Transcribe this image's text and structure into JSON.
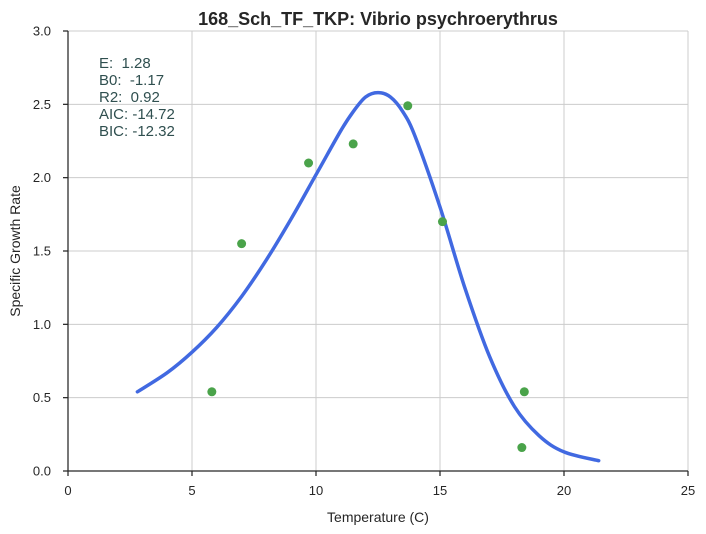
{
  "chart_data": {
    "type": "scatter",
    "title": "168_Sch_TF_TKP: Vibrio  psychroerythrus",
    "xlabel": "Temperature (C)",
    "ylabel": "Specific Growth Rate",
    "xlim": [
      0,
      25
    ],
    "ylim": [
      0,
      3
    ],
    "xticks": [
      "0",
      "5",
      "10",
      "15",
      "20",
      "25"
    ],
    "yticks": [
      "0.0",
      "0.5",
      "1.0",
      "1.5",
      "2.0",
      "2.5",
      "3.0"
    ],
    "grid": true,
    "annotations": [
      "E:  1.28",
      "B0:  -1.17",
      "R2:  0.92",
      "AIC: -14.72",
      "BIC: -12.32"
    ],
    "points": {
      "color": "#4aa34a",
      "x": [
        5.8,
        7.0,
        9.7,
        11.5,
        13.7,
        15.1,
        18.3,
        18.4
      ],
      "y": [
        0.54,
        1.55,
        2.1,
        2.23,
        2.49,
        1.7,
        0.16,
        0.54
      ]
    },
    "fit": {
      "color": "#4169e1",
      "x": [
        2.8,
        4.0,
        5.0,
        6.0,
        7.0,
        8.0,
        9.0,
        10.0,
        11.0,
        11.5,
        12.0,
        12.5,
        13.0,
        13.5,
        14.0,
        15.0,
        16.0,
        17.0,
        18.0,
        19.0,
        20.0,
        21.4
      ],
      "y": [
        0.54,
        0.67,
        0.81,
        0.98,
        1.19,
        1.44,
        1.72,
        2.02,
        2.32,
        2.45,
        2.55,
        2.58,
        2.55,
        2.45,
        2.28,
        1.8,
        1.25,
        0.78,
        0.44,
        0.24,
        0.13,
        0.07
      ]
    }
  }
}
